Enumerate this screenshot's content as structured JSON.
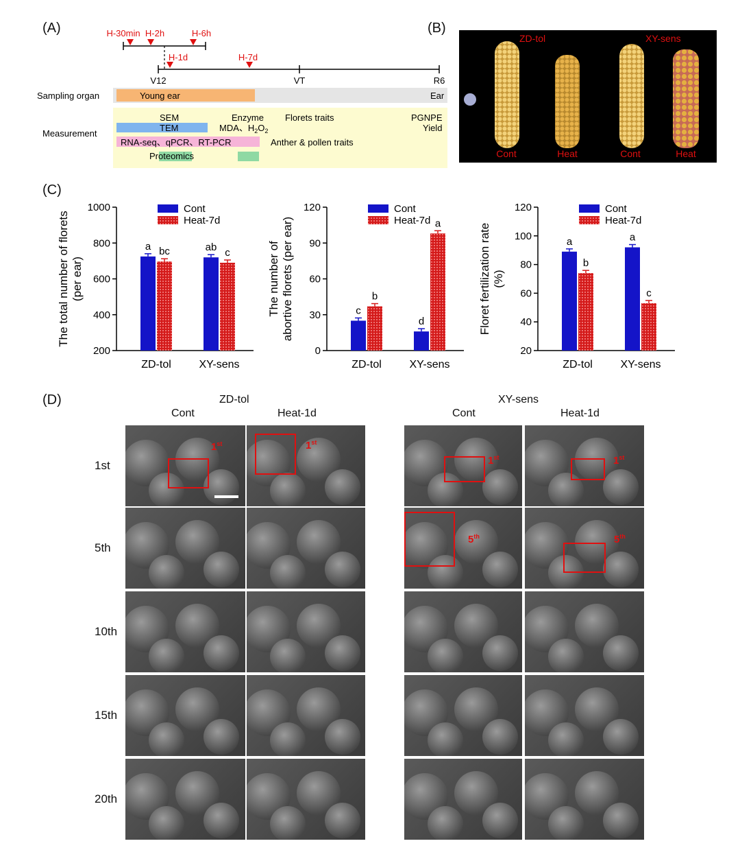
{
  "panels": {
    "a": "(A)",
    "b": "(B)",
    "c": "(C)",
    "d": "(D)"
  },
  "timeline": {
    "top_markers": [
      "H-30min",
      "H-2h",
      "H-6h"
    ],
    "lower_markers": [
      "H-1d",
      "H-7d"
    ],
    "stages": [
      "V12",
      "VT",
      "R6"
    ],
    "sampling_label": "Sampling organ",
    "young_ear": "Young ear",
    "ear": "Ear",
    "measurement_label": "Measurement",
    "sem": "SEM",
    "tem": "TEM",
    "enzyme": "Enzyme",
    "mda": "MDA、H",
    "h2o2_sub1": "2",
    "h2o2_o": "O",
    "h2o2_sub2": "2",
    "florets_traits": "Florets traits",
    "pgnpe": "PGNPE",
    "yield": "Yield",
    "rnaseq": "RNA-seq、qPCR、RT-PCR",
    "anther": "Anther & pollen traits",
    "proteomics": "Proteomics"
  },
  "photo": {
    "zd": "ZD-tol",
    "xy": "XY-sens",
    "labels": [
      "Cont",
      "Heat",
      "Cont",
      "Heat"
    ]
  },
  "colors": {
    "cont": "#1414c8",
    "heat": "#d41a1a",
    "red": "#e01010"
  },
  "chart_data": [
    {
      "type": "bar",
      "ylabel_lines": [
        "The total number of florets",
        "(per ear)"
      ],
      "categories": [
        "ZD-tol",
        "XY-sens"
      ],
      "series": [
        {
          "name": "Cont",
          "values": [
            725,
            720
          ]
        },
        {
          "name": "Heat-7d",
          "values": [
            697,
            690
          ]
        }
      ],
      "ylim": [
        200,
        1000
      ],
      "ticks": [
        "200",
        "400",
        "600",
        "800",
        "1000"
      ],
      "letters": [
        [
          "a",
          "ab"
        ],
        [
          "bc",
          "c"
        ]
      ]
    },
    {
      "type": "bar",
      "ylabel_lines": [
        "The number of",
        "abortive florets (per ear)"
      ],
      "categories": [
        "ZD-tol",
        "XY-sens"
      ],
      "series": [
        {
          "name": "Cont",
          "values": [
            25,
            16
          ]
        },
        {
          "name": "Heat-7d",
          "values": [
            37,
            98
          ]
        }
      ],
      "ylim": [
        0,
        120
      ],
      "ticks": [
        "0",
        "30",
        "60",
        "90",
        "120"
      ],
      "letters": [
        [
          "c",
          "d"
        ],
        [
          "b",
          "a"
        ]
      ]
    },
    {
      "type": "bar",
      "ylabel_lines": [
        "Floret fertilization rate",
        "(%)"
      ],
      "categories": [
        "ZD-tol",
        "XY-sens"
      ],
      "series": [
        {
          "name": "Cont",
          "values": [
            89,
            92
          ]
        },
        {
          "name": "Heat-7d",
          "values": [
            74,
            53
          ]
        }
      ],
      "ylim": [
        20,
        120
      ],
      "ticks": [
        "20",
        "40",
        "60",
        "80",
        "100",
        "120"
      ],
      "letters": [
        [
          "a",
          "a"
        ],
        [
          "b",
          "c"
        ]
      ]
    }
  ],
  "sem_grid": {
    "zd": "ZD-tol",
    "xy": "XY-sens",
    "cols": [
      "Cont",
      "Heat-1d",
      "Cont",
      "Heat-1d"
    ],
    "rows": [
      "1st",
      "5th",
      "10th",
      "15th",
      "20th"
    ],
    "ann_1st": "1",
    "ann_st": "st",
    "ann_5th": "5",
    "ann_th": "th"
  }
}
